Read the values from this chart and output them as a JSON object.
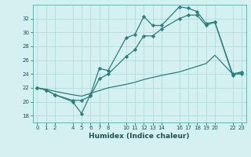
{
  "xlabel": "Humidex (Indice chaleur)",
  "line_color": "#2d7f7f",
  "background_color": "#d4f0f0",
  "grid_color": "#b0d8d8",
  "ylim": [
    17,
    34
  ],
  "yticks": [
    18,
    20,
    22,
    24,
    26,
    28,
    30,
    32
  ],
  "xtick_positions": [
    0,
    1,
    2,
    4,
    5,
    6,
    7,
    8,
    10,
    11,
    12,
    13,
    14,
    16,
    17,
    18,
    19,
    20,
    22,
    23
  ],
  "xtick_labels": [
    "0",
    "1",
    "2",
    "4",
    "5",
    "6",
    "7",
    "8",
    "10",
    "11",
    "12",
    "13",
    "14",
    "16",
    "17",
    "18",
    "19",
    "20",
    "22",
    "23"
  ],
  "xlim": [
    -0.5,
    23.5
  ],
  "line1_x": [
    0,
    1,
    2,
    4,
    5,
    6,
    7,
    8,
    10,
    11,
    12,
    13,
    14,
    16,
    17,
    18,
    19,
    20,
    22,
    23
  ],
  "line1_y": [
    22.0,
    21.7,
    21.0,
    20.0,
    18.3,
    21.0,
    24.8,
    24.5,
    29.2,
    29.7,
    32.3,
    31.0,
    31.0,
    33.7,
    33.5,
    33.0,
    31.3,
    31.5,
    24.0,
    24.0
  ],
  "line2_x": [
    0,
    1,
    2,
    4,
    5,
    6,
    7,
    8,
    10,
    11,
    12,
    13,
    14,
    16,
    17,
    18,
    19,
    20,
    22,
    23
  ],
  "line2_y": [
    22.0,
    21.7,
    21.0,
    20.2,
    20.2,
    20.8,
    23.3,
    24.0,
    26.5,
    27.5,
    29.5,
    29.5,
    30.5,
    32.0,
    32.5,
    32.5,
    31.0,
    31.5,
    23.8,
    24.2
  ],
  "line3_x": [
    0,
    1,
    2,
    4,
    5,
    6,
    7,
    8,
    10,
    11,
    12,
    13,
    14,
    16,
    17,
    18,
    19,
    20,
    22,
    23
  ],
  "line3_y": [
    22.0,
    21.8,
    21.5,
    21.0,
    20.8,
    21.2,
    21.6,
    22.0,
    22.5,
    22.8,
    23.2,
    23.5,
    23.8,
    24.3,
    24.7,
    25.1,
    25.5,
    26.7,
    24.0,
    24.3
  ]
}
